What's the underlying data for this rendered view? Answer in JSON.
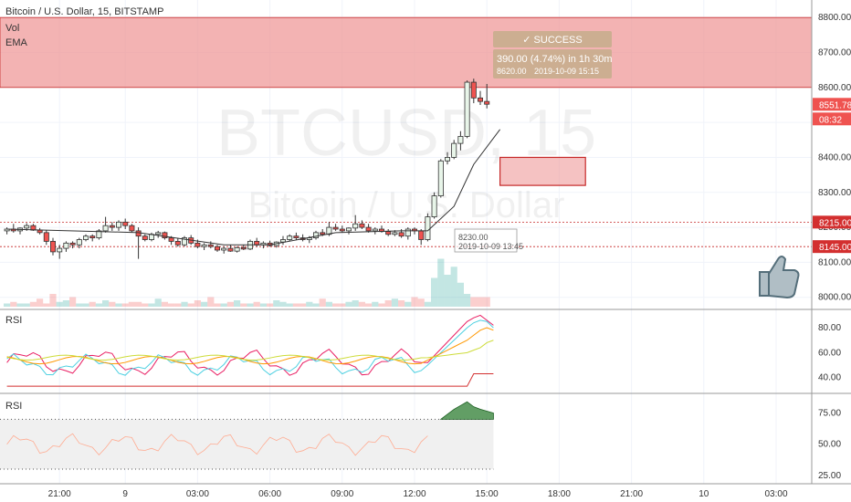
{
  "header": {
    "title": "Bitcoin / U.S. Dollar, 15, BITSTAMP",
    "indicators": [
      "Vol",
      "EMA"
    ]
  },
  "watermark": {
    "symbol": "BTCUSD, 15",
    "name": "Bitcoin / U.S. Dollar"
  },
  "trade_box": {
    "status": "SUCCESS",
    "result": "390.00 (4.74%) in 1h 30m",
    "target": "8620.00",
    "target_time": "2019-10-09  15:15",
    "entry": "8230.00",
    "entry_time": "2019-10-09 13:45"
  },
  "price_labels": [
    {
      "text": "8551.78",
      "color": "#ef5350"
    },
    {
      "text": "08:32",
      "color": "#ef5350"
    },
    {
      "text": "8215.00",
      "color": "#d32f2f"
    },
    {
      "text": "8145.00",
      "color": "#d32f2f"
    }
  ],
  "panes": {
    "rsi1_title": "RSI",
    "rsi2_title": "RSI"
  },
  "colors": {
    "up": "#26a69a",
    "down": "#ef5350",
    "zone": "#ef9a9a",
    "zone_border": "#c62828",
    "ema": "#333333"
  },
  "chart_data": [
    {
      "type": "candlestick",
      "title": "Bitcoin / U.S. Dollar, 15, BITSTAMP",
      "y_ticks": [
        8000,
        8100,
        8200,
        8300,
        8400,
        8500,
        8600,
        8700,
        8800
      ],
      "y_tick_labels": [
        "8000.00",
        "8100.00",
        "8200.00",
        "8300.00",
        "8400.00",
        "8500.00",
        "8600.00",
        "8700.00",
        "8800.00"
      ],
      "ylim": [
        7968,
        8850
      ],
      "x_tick_labels": [
        "21:00",
        "9",
        "03:00",
        "06:00",
        "09:00",
        "12:00",
        "15:00",
        "18:00",
        "21:00",
        "10",
        "03:00"
      ],
      "x_tick_index": [
        8,
        18,
        29,
        40,
        51,
        62,
        73,
        84,
        95,
        106,
        117
      ],
      "candles": [
        [
          8190,
          8200,
          8180,
          8195
        ],
        [
          8195,
          8210,
          8185,
          8190
        ],
        [
          8190,
          8200,
          8180,
          8198
        ],
        [
          8198,
          8212,
          8190,
          8205
        ],
        [
          8205,
          8210,
          8190,
          8192
        ],
        [
          8192,
          8198,
          8180,
          8185
        ],
        [
          8185,
          8192,
          8150,
          8160
        ],
        [
          8160,
          8170,
          8120,
          8130
        ],
        [
          8130,
          8150,
          8110,
          8140
        ],
        [
          8140,
          8160,
          8130,
          8155
        ],
        [
          8155,
          8160,
          8140,
          8150
        ],
        [
          8150,
          8170,
          8140,
          8165
        ],
        [
          8165,
          8180,
          8160,
          8175
        ],
        [
          8175,
          8180,
          8160,
          8170
        ],
        [
          8170,
          8195,
          8165,
          8190
        ],
        [
          8190,
          8230,
          8185,
          8205
        ],
        [
          8205,
          8215,
          8190,
          8200
        ],
        [
          8200,
          8220,
          8190,
          8215
        ],
        [
          8215,
          8225,
          8195,
          8205
        ],
        [
          8205,
          8210,
          8185,
          8190
        ],
        [
          8190,
          8200,
          8110,
          8175
        ],
        [
          8175,
          8180,
          8160,
          8165
        ],
        [
          8165,
          8185,
          8160,
          8180
        ],
        [
          8180,
          8190,
          8170,
          8185
        ],
        [
          8185,
          8188,
          8165,
          8170
        ],
        [
          8170,
          8175,
          8150,
          8160
        ],
        [
          8160,
          8170,
          8145,
          8150
        ],
        [
          8150,
          8175,
          8145,
          8170
        ],
        [
          8170,
          8178,
          8150,
          8155
        ],
        [
          8155,
          8165,
          8140,
          8145
        ],
        [
          8145,
          8155,
          8135,
          8150
        ],
        [
          8150,
          8160,
          8140,
          8145
        ],
        [
          8145,
          8150,
          8130,
          8135
        ],
        [
          8135,
          8145,
          8125,
          8140
        ],
        [
          8140,
          8150,
          8130,
          8132
        ],
        [
          8132,
          8145,
          8128,
          8142
        ],
        [
          8142,
          8150,
          8135,
          8138
        ],
        [
          8138,
          8165,
          8135,
          8160
        ],
        [
          8160,
          8170,
          8145,
          8150
        ],
        [
          8150,
          8160,
          8140,
          8155
        ],
        [
          8155,
          8162,
          8145,
          8148
        ],
        [
          8148,
          8160,
          8142,
          8158
        ],
        [
          8158,
          8175,
          8150,
          8165
        ],
        [
          8165,
          8180,
          8160,
          8175
        ],
        [
          8175,
          8185,
          8165,
          8170
        ],
        [
          8170,
          8180,
          8160,
          8165
        ],
        [
          8165,
          8175,
          8155,
          8170
        ],
        [
          8170,
          8190,
          8165,
          8185
        ],
        [
          8185,
          8195,
          8175,
          8180
        ],
        [
          8180,
          8215,
          8175,
          8200
        ],
        [
          8200,
          8210,
          8190,
          8195
        ],
        [
          8195,
          8205,
          8185,
          8190
        ],
        [
          8190,
          8200,
          8180,
          8198
        ],
        [
          8198,
          8235,
          8190,
          8210
        ],
        [
          8210,
          8220,
          8195,
          8200
        ],
        [
          8200,
          8210,
          8185,
          8190
        ],
        [
          8190,
          8200,
          8180,
          8195
        ],
        [
          8195,
          8205,
          8185,
          8188
        ],
        [
          8188,
          8195,
          8175,
          8180
        ],
        [
          8180,
          8192,
          8175,
          8185
        ],
        [
          8185,
          8195,
          8170,
          8175
        ],
        [
          8175,
          8200,
          8165,
          8195
        ],
        [
          8195,
          8200,
          8180,
          8190
        ],
        [
          8190,
          8195,
          8150,
          8165
        ],
        [
          8165,
          8240,
          8160,
          8230
        ],
        [
          8230,
          8300,
          8225,
          8290
        ],
        [
          8290,
          8395,
          8285,
          8390
        ],
        [
          8390,
          8415,
          8380,
          8400
        ],
        [
          8400,
          8450,
          8395,
          8440
        ],
        [
          8440,
          8475,
          8420,
          8460
        ],
        [
          8460,
          8620,
          8455,
          8615
        ],
        [
          8615,
          8625,
          8555,
          8570
        ],
        [
          8570,
          8590,
          8550,
          8560
        ],
        [
          8560,
          8610,
          8540,
          8552
        ]
      ],
      "ema": [
        [
          0,
          8195
        ],
        [
          20,
          8185
        ],
        [
          33,
          8150
        ],
        [
          40,
          8150
        ],
        [
          50,
          8185
        ],
        [
          60,
          8190
        ],
        [
          64,
          8190
        ],
        [
          68,
          8260
        ],
        [
          71,
          8380
        ],
        [
          75,
          8480
        ]
      ],
      "volume": [
        2,
        3,
        2,
        2,
        3,
        5,
        2,
        8,
        3,
        4,
        6,
        2,
        2,
        3,
        2,
        4,
        3,
        2,
        2,
        3,
        3,
        2,
        2,
        5,
        3,
        2,
        2,
        3,
        2,
        4,
        3,
        6,
        2,
        2,
        3,
        4,
        2,
        2,
        3,
        2,
        2,
        4,
        3,
        2,
        2,
        2,
        3,
        2,
        5,
        3,
        2,
        2,
        3,
        4,
        3,
        2,
        3,
        2,
        4,
        5,
        4,
        3,
        6,
        5,
        3,
        18,
        30,
        20,
        25,
        15,
        8,
        6,
        6,
        6
      ],
      "zones": [
        {
          "from": 8600,
          "to": 8800,
          "color": "#ef9a9a"
        }
      ],
      "annotation_box": {
        "x_from": 75,
        "x_to": 88,
        "from": 8320,
        "to": 8400
      }
    },
    {
      "type": "line",
      "title": "RSI",
      "y_tick_labels": [
        "40.00",
        "60.00",
        "80.00"
      ],
      "y_ticks": [
        40,
        60,
        80
      ],
      "ylim": [
        28,
        94
      ]
    },
    {
      "type": "area",
      "title": "RSI",
      "y_tick_labels": [
        "25.00",
        "50.00",
        "75.00"
      ],
      "y_ticks": [
        25,
        50,
        75
      ],
      "ylim": [
        22,
        90
      ]
    }
  ]
}
